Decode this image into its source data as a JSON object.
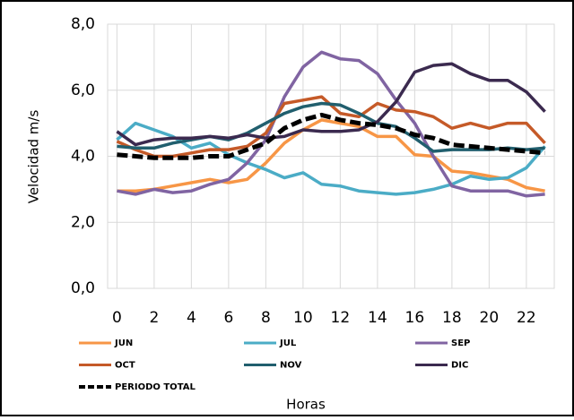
{
  "chart_data": {
    "type": "line",
    "x_label": "Horas",
    "y_label": "Velocidad m/s",
    "x": [
      0,
      1,
      2,
      3,
      4,
      5,
      6,
      7,
      8,
      9,
      10,
      11,
      12,
      13,
      14,
      15,
      16,
      17,
      18,
      19,
      20,
      21,
      22,
      23
    ],
    "xlim": [
      -0.5,
      23.5
    ],
    "xticks": [
      0,
      2,
      4,
      6,
      8,
      10,
      12,
      14,
      16,
      18,
      20,
      22
    ],
    "ylim": [
      0,
      8
    ],
    "yticks": [
      {
        "value": 0,
        "label": "0,0"
      },
      {
        "value": 2,
        "label": "2,0"
      },
      {
        "value": 4,
        "label": "4,0"
      },
      {
        "value": 6,
        "label": "6,0"
      },
      {
        "value": 8,
        "label": "8,0"
      }
    ],
    "grid": true,
    "legend": "bottom",
    "series": [
      {
        "name": "JUN",
        "color": "#f79646",
        "values": [
          2.95,
          2.95,
          3.0,
          3.1,
          3.2,
          3.3,
          3.2,
          3.3,
          3.8,
          4.4,
          4.8,
          5.1,
          5.0,
          4.9,
          4.6,
          4.6,
          4.05,
          4.0,
          3.55,
          3.5,
          3.4,
          3.3,
          3.05,
          2.95
        ]
      },
      {
        "name": "JUL",
        "color": "#4bacc6",
        "values": [
          4.5,
          5.0,
          4.8,
          4.6,
          4.25,
          4.4,
          4.05,
          3.8,
          3.6,
          3.35,
          3.5,
          3.15,
          3.1,
          2.95,
          2.9,
          2.85,
          2.9,
          3.0,
          3.15,
          3.4,
          3.3,
          3.35,
          3.65,
          4.3
        ]
      },
      {
        "name": "SEP",
        "color": "#8064a2",
        "values": [
          2.95,
          2.85,
          3.0,
          2.9,
          2.95,
          3.15,
          3.3,
          3.8,
          4.5,
          5.8,
          6.7,
          7.15,
          6.95,
          6.9,
          6.5,
          5.7,
          5.0,
          4.0,
          3.1,
          2.95,
          2.95,
          2.95,
          2.8,
          2.85
        ]
      },
      {
        "name": "OCT",
        "color": "#c55a28",
        "values": [
          4.45,
          4.2,
          4.0,
          4.0,
          4.1,
          4.2,
          4.2,
          4.3,
          4.7,
          5.6,
          5.7,
          5.8,
          5.3,
          5.2,
          5.6,
          5.4,
          5.35,
          5.2,
          4.85,
          5.0,
          4.85,
          5.0,
          5.0,
          4.4
        ]
      },
      {
        "name": "NOV",
        "color": "#215f6e",
        "values": [
          4.3,
          4.25,
          4.25,
          4.4,
          4.5,
          4.6,
          4.5,
          4.7,
          5.0,
          5.3,
          5.5,
          5.6,
          5.55,
          5.3,
          5.0,
          4.9,
          4.55,
          4.15,
          4.2,
          4.2,
          4.2,
          4.25,
          4.2,
          4.25
        ]
      },
      {
        "name": "DIC",
        "color": "#3b2a4f",
        "values": [
          4.75,
          4.35,
          4.5,
          4.55,
          4.55,
          4.6,
          4.55,
          4.65,
          4.55,
          4.6,
          4.8,
          4.75,
          4.75,
          4.8,
          5.05,
          5.65,
          6.55,
          6.75,
          6.8,
          6.5,
          6.3,
          6.3,
          5.95,
          5.35
        ]
      },
      {
        "name": "PERIODO TOTAL",
        "color": "#000000",
        "dashed": true,
        "values": [
          4.05,
          4.0,
          3.95,
          3.95,
          3.95,
          4.0,
          4.0,
          4.2,
          4.4,
          4.85,
          5.1,
          5.25,
          5.1,
          5.0,
          4.95,
          4.85,
          4.65,
          4.55,
          4.35,
          4.3,
          4.25,
          4.2,
          4.15,
          4.1
        ]
      }
    ]
  }
}
